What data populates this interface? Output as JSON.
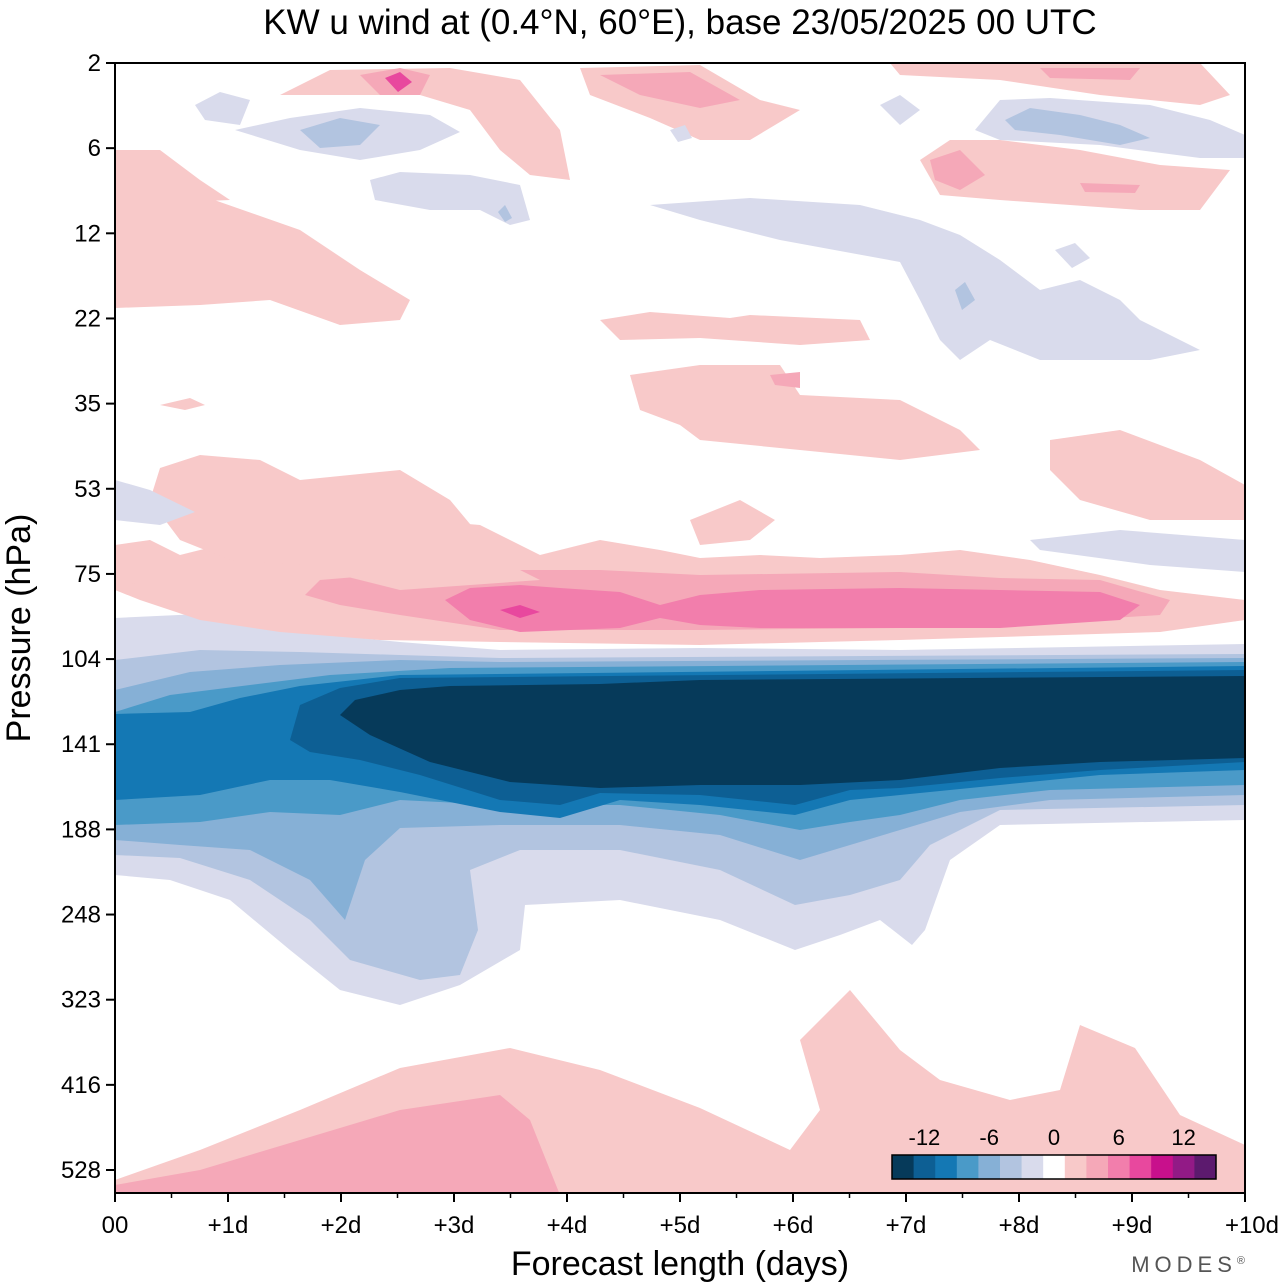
{
  "chart_data": {
    "type": "heatmap",
    "title": "KW u wind at (0.4°N, 60°E),  base 23/05/2025  00 UTC",
    "xlabel": "Forecast length (days)",
    "ylabel": "Pressure (hPa)",
    "x_ticks": [
      "00",
      "+1d",
      "+2d",
      "+3d",
      "+4d",
      "+5d",
      "+6d",
      "+7d",
      "+8d",
      "+9d",
      "+10d"
    ],
    "y_ticks": [
      "2",
      "6",
      "12",
      "22",
      "35",
      "53",
      "75",
      "104",
      "141",
      "188",
      "248",
      "323",
      "416",
      "528"
    ],
    "xlim": [
      0,
      10
    ],
    "colorbar": {
      "labels": [
        "-12",
        "-6",
        "0",
        "6",
        "12"
      ],
      "levels": [
        -16,
        -14,
        -12,
        -10,
        -8,
        -6,
        -4,
        -2,
        2,
        4,
        6,
        8,
        10,
        12,
        14,
        16
      ],
      "colors": [
        "#063a5a",
        "#0d5f94",
        "#1478b4",
        "#4a9ac8",
        "#86b0d6",
        "#b2c4e0",
        "#d9dbec",
        "#ffffff",
        "#f8c9c9",
        "#f5a8b8",
        "#f27eac",
        "#e8489e",
        "#c8108c",
        "#921a86",
        "#5c1a6e"
      ]
    },
    "regions": [
      {
        "name": "tropopause-easterly-jet-core",
        "level": "<-16",
        "x_days": [
          2.0,
          10.0
        ],
        "pressure_hPa": [
          115,
          175
        ]
      },
      {
        "name": "lower-stratosphere-westerly-band",
        "level": "6 to 10",
        "x_days": [
          2.5,
          9.5
        ],
        "pressure_hPa": [
          78,
          95
        ]
      },
      {
        "name": "upper-troposphere-easterlies",
        "level": "-2 to -14",
        "x_days": [
          0,
          10
        ],
        "pressure_hPa": [
          100,
          330
        ]
      },
      {
        "name": "mid-troposphere-westerlies",
        "level": "2 to 6",
        "x_days": [
          0,
          10
        ],
        "pressure_hPa": [
          360,
          560
        ]
      }
    ],
    "brand": "MODES",
    "brand_mark": "®"
  }
}
